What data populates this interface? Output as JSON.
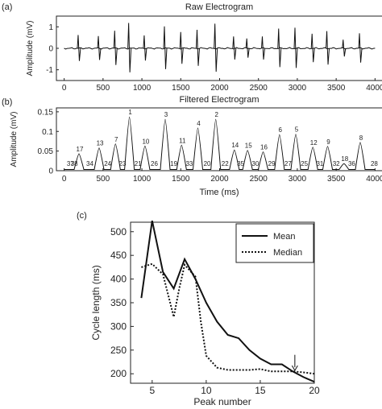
{
  "chart_data": [
    {
      "id": "a",
      "panel_label": "(a)",
      "type": "line",
      "title": "Raw Electrogram",
      "xlabel": "",
      "ylabel": "Amplitude (mV)",
      "xlim": [
        -100,
        4100
      ],
      "ylim": [
        -1.5,
        1.5
      ],
      "xticks": [
        0,
        500,
        1000,
        1500,
        2000,
        2500,
        3000,
        3500,
        4000
      ],
      "yticks": [
        -1,
        0,
        1
      ],
      "spikes": [
        {
          "t": 190,
          "a": 0.62
        },
        {
          "t": 450,
          "a": 0.57
        },
        {
          "t": 660,
          "a": 0.82
        },
        {
          "t": 840,
          "a": 1.18
        },
        {
          "t": 1040,
          "a": 0.6
        },
        {
          "t": 1300,
          "a": 1.02
        },
        {
          "t": 1510,
          "a": 0.76
        },
        {
          "t": 1720,
          "a": 0.86
        },
        {
          "t": 1950,
          "a": 1.15
        },
        {
          "t": 2190,
          "a": 0.55
        },
        {
          "t": 2360,
          "a": 0.46
        },
        {
          "t": 2560,
          "a": 0.55
        },
        {
          "t": 2770,
          "a": 0.92
        },
        {
          "t": 2980,
          "a": 0.96
        },
        {
          "t": 3200,
          "a": 0.68
        },
        {
          "t": 3390,
          "a": 0.8
        },
        {
          "t": 3600,
          "a": 0.4
        },
        {
          "t": 3810,
          "a": 0.7
        }
      ]
    },
    {
      "id": "b",
      "panel_label": "(b)",
      "type": "line",
      "title": "Filtered Electrogram",
      "xlabel": "Time (ms)",
      "ylabel": "Amplitude (mV)",
      "xlim": [
        -100,
        4100
      ],
      "ylim": [
        0,
        0.16
      ],
      "xticks": [
        0,
        500,
        1000,
        1500,
        2000,
        2500,
        3000,
        3500,
        4000
      ],
      "yticks": [
        0,
        0.05,
        0.1,
        0.15
      ],
      "ytick_labels": [
        "0",
        "0.05",
        "0.1",
        "0.15"
      ],
      "peaks": [
        {
          "t": 190,
          "v": 0.043,
          "label": "17"
        },
        {
          "t": 450,
          "v": 0.058,
          "label": "13"
        },
        {
          "t": 660,
          "v": 0.068,
          "label": "7"
        },
        {
          "t": 840,
          "v": 0.137,
          "label": "1"
        },
        {
          "t": 1040,
          "v": 0.063,
          "label": "10"
        },
        {
          "t": 1300,
          "v": 0.131,
          "label": "3"
        },
        {
          "t": 1510,
          "v": 0.065,
          "label": "11"
        },
        {
          "t": 1720,
          "v": 0.109,
          "label": "4"
        },
        {
          "t": 1950,
          "v": 0.131,
          "label": "2"
        },
        {
          "t": 2190,
          "v": 0.053,
          "label": "14"
        },
        {
          "t": 2360,
          "v": 0.052,
          "label": "15"
        },
        {
          "t": 2560,
          "v": 0.048,
          "label": "16"
        },
        {
          "t": 2770,
          "v": 0.092,
          "label": "6"
        },
        {
          "t": 2980,
          "v": 0.093,
          "label": "5"
        },
        {
          "t": 3200,
          "v": 0.06,
          "label": "12"
        },
        {
          "t": 3390,
          "v": 0.062,
          "label": "9"
        },
        {
          "t": 3600,
          "v": 0.018,
          "label": "18"
        },
        {
          "t": 3810,
          "v": 0.072,
          "label": "8"
        }
      ],
      "minor_labels": [
        {
          "t": 80,
          "label": "37"
        },
        {
          "t": 130,
          "label": "38"
        },
        {
          "t": 330,
          "label": "34"
        },
        {
          "t": 560,
          "label": "24"
        },
        {
          "t": 750,
          "label": "23"
        },
        {
          "t": 950,
          "label": "21"
        },
        {
          "t": 1160,
          "label": "26"
        },
        {
          "t": 1410,
          "label": "19"
        },
        {
          "t": 1610,
          "label": "33"
        },
        {
          "t": 1840,
          "label": "20"
        },
        {
          "t": 2070,
          "label": "22"
        },
        {
          "t": 2270,
          "label": "35"
        },
        {
          "t": 2460,
          "label": "30"
        },
        {
          "t": 2670,
          "label": "29"
        },
        {
          "t": 2880,
          "label": "27"
        },
        {
          "t": 3090,
          "label": "25"
        },
        {
          "t": 3290,
          "label": "31"
        },
        {
          "t": 3500,
          "label": "32"
        },
        {
          "t": 3700,
          "label": "36"
        },
        {
          "t": 3990,
          "label": "28"
        }
      ]
    },
    {
      "id": "c",
      "panel_label": "(c)",
      "type": "line",
      "xlabel": "Peak number",
      "ylabel": "Cycle length (ms)",
      "xlim": [
        3,
        20
      ],
      "ylim": [
        180,
        520
      ],
      "xticks": [
        5,
        10,
        15,
        20
      ],
      "yticks": [
        200,
        250,
        300,
        350,
        400,
        450,
        500
      ],
      "legend": "top-right",
      "series": [
        {
          "name": "Mean",
          "style": "solid",
          "x": [
            4,
            5,
            6,
            7,
            8,
            9,
            10,
            11,
            12,
            13,
            14,
            15,
            16,
            17,
            18,
            19,
            20
          ],
          "y": [
            360,
            523,
            415,
            380,
            442,
            400,
            350,
            310,
            282,
            275,
            250,
            232,
            220,
            220,
            205,
            193,
            183
          ]
        },
        {
          "name": "Median",
          "style": "dotted",
          "x": [
            4,
            5,
            6,
            7,
            7.5,
            8,
            9,
            9.5,
            10,
            11,
            12,
            13,
            14,
            15,
            16,
            17,
            18,
            19,
            20
          ],
          "y": [
            425,
            432,
            410,
            320,
            380,
            430,
            405,
            310,
            238,
            213,
            208,
            208,
            208,
            210,
            205,
            205,
            205,
            203,
            200
          ]
        }
      ],
      "annotations": [
        {
          "type": "arrow",
          "x": 18.2,
          "y_from": 240,
          "y_to": 207
        }
      ]
    }
  ]
}
